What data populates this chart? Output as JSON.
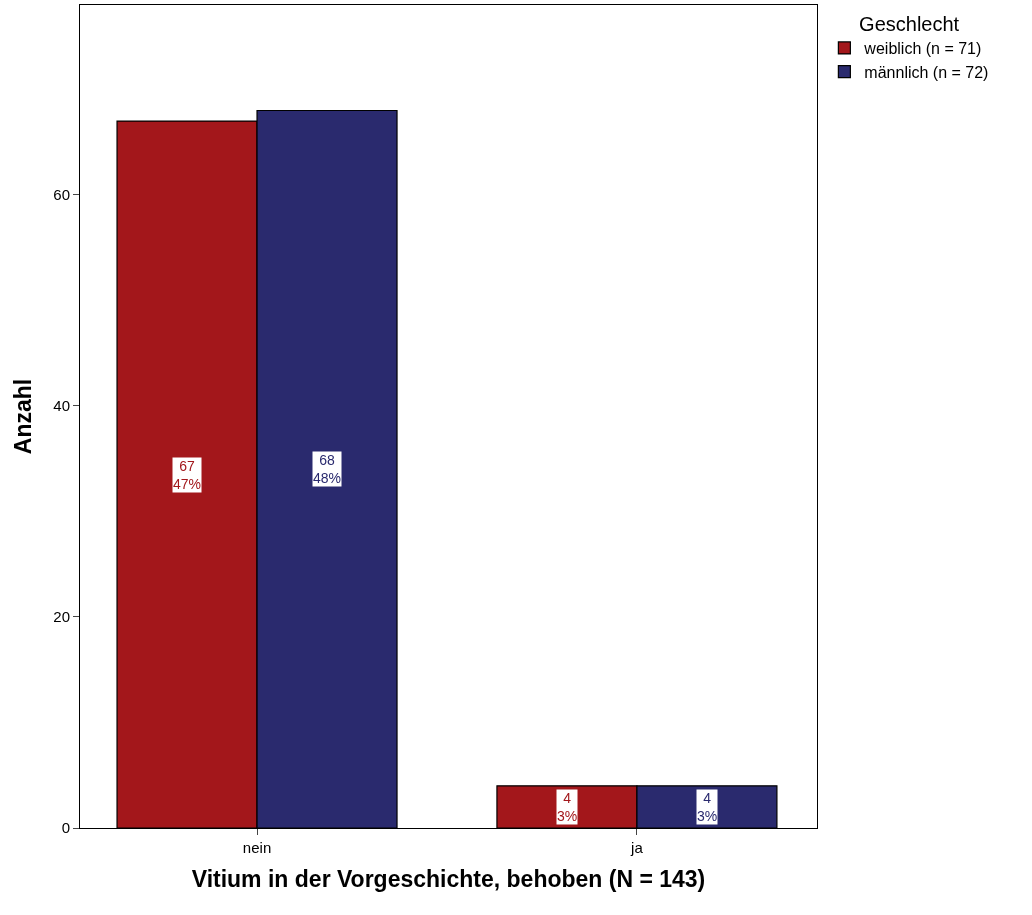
{
  "chart_data": {
    "type": "bar",
    "xlabel": "Vitium in der Vorgeschichte, behoben (N = 143)",
    "ylabel": "Anzahl",
    "legend_title": "Geschlecht",
    "categories": [
      "nein",
      "ja"
    ],
    "series": [
      {
        "name": "weiblich (n = 71)",
        "color": "#a3171b",
        "values": [
          67,
          4
        ],
        "value_labels": [
          "67\n47%",
          "4\n3%"
        ]
      },
      {
        "name": "männlich (n = 72)",
        "color": "#2a2a6e",
        "values": [
          68,
          4
        ],
        "value_labels": [
          "68\n48%",
          "4\n3%"
        ]
      }
    ],
    "ylim": [
      0,
      78
    ],
    "yticks": [
      0,
      20,
      40,
      60
    ],
    "legend": "top right"
  }
}
